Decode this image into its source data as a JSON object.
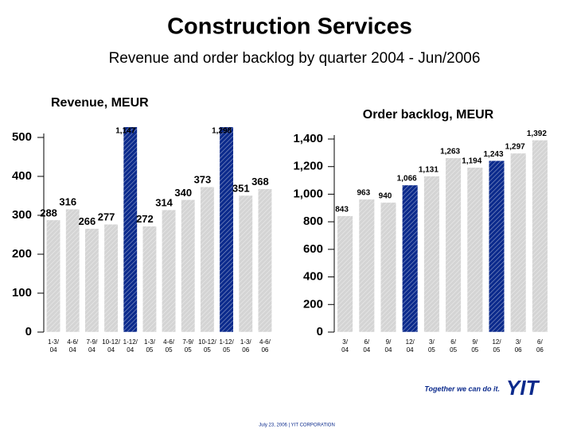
{
  "slide": {
    "title": "Construction Services",
    "subtitle": "Revenue and order backlog by quarter 2004 - Jun/2006",
    "slogan": "Together we can do it.",
    "logo": "YIT",
    "footer": "July 23, 2006  |  YIT CORPORATION"
  },
  "chart_data": [
    {
      "type": "bar",
      "title": "Revenue, MEUR",
      "categories": [
        "1-3/\n04",
        "4-6/\n04",
        "7-9/\n04",
        "10-12/\n04",
        "1-12/\n04",
        "1-3/\n05",
        "4-6/\n05",
        "7-9/\n05",
        "10-12/\n05",
        "1-12/\n05",
        "1-3/\n06",
        "4-6/\n06"
      ],
      "values": [
        288,
        316,
        266,
        277,
        1147,
        272,
        314,
        340,
        373,
        1298,
        351,
        368
      ],
      "value_labels": [
        "288",
        "316",
        "266",
        "277",
        "1,147",
        "272",
        "314",
        "340",
        "373",
        "1,298",
        "351",
        "368"
      ],
      "colors": [
        "#d4d4d4",
        "#d4d4d4",
        "#d4d4d4",
        "#d4d4d4",
        "#0b2a8c",
        "#d4d4d4",
        "#d4d4d4",
        "#d4d4d4",
        "#d4d4d4",
        "#0b2a8c",
        "#d4d4d4",
        "#d4d4d4"
      ],
      "ylim": [
        0,
        500
      ],
      "yticks": [
        0,
        100,
        200,
        300,
        400,
        500
      ]
    },
    {
      "type": "bar",
      "title": "Order backlog, MEUR",
      "categories": [
        "3/\n04",
        "6/\n04",
        "9/\n04",
        "12/\n04",
        "3/\n05",
        "6/\n05",
        "9/\n05",
        "12/\n05",
        "3/\n06",
        "6/\n06"
      ],
      "values": [
        843,
        963,
        940,
        1066,
        1131,
        1263,
        1194,
        1243,
        1297,
        1392
      ],
      "value_labels": [
        "843",
        "963",
        "940",
        "1,066",
        "1,131",
        "1,263",
        "1,194",
        "1,243",
        "1,297",
        "1,392"
      ],
      "colors": [
        "#d4d4d4",
        "#d4d4d4",
        "#d4d4d4",
        "#0b2a8c",
        "#d4d4d4",
        "#d4d4d4",
        "#d4d4d4",
        "#0b2a8c",
        "#d4d4d4",
        "#d4d4d4"
      ],
      "ylim": [
        0,
        1400
      ],
      "yticks": [
        0,
        200,
        400,
        600,
        800,
        {
          "value": 1000,
          "label": "1,000"
        },
        {
          "value": 1200,
          "label": "1,200"
        },
        {
          "value": 1400,
          "label": "1,400"
        }
      ]
    }
  ]
}
